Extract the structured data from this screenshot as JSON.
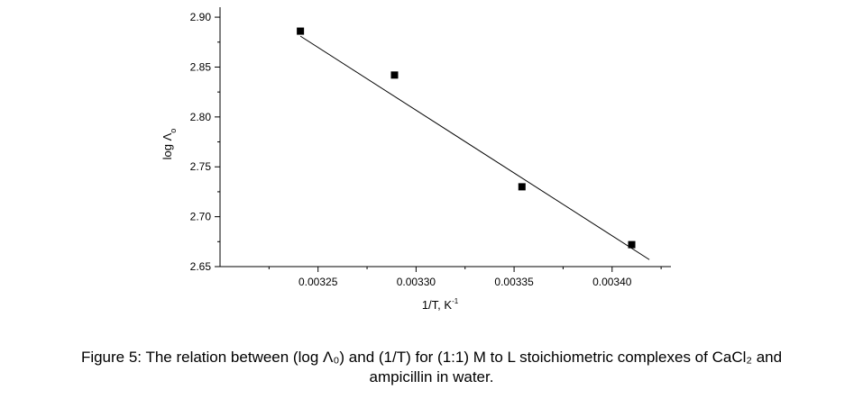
{
  "chart_data": {
    "type": "scatter",
    "xlabel": "1/T, K",
    "xlabel_sup": "-1",
    "ylabel": "log Λ",
    "ylabel_sub": "o",
    "xlim": [
      0.0032,
      0.00343
    ],
    "ylim": [
      2.65,
      2.91
    ],
    "xticks": [
      0.00325,
      0.0033,
      0.00335,
      0.0034
    ],
    "xtick_labels": [
      "0.00325",
      "0.00330",
      "0.00335",
      "0.00340"
    ],
    "yticks": [
      2.65,
      2.7,
      2.75,
      2.8,
      2.85,
      2.9
    ],
    "ytick_labels": [
      "2.65",
      "2.70",
      "2.75",
      "2.80",
      "2.85",
      "2.90"
    ],
    "points": [
      {
        "x": 0.003241,
        "y": 2.886
      },
      {
        "x": 0.003289,
        "y": 2.842
      },
      {
        "x": 0.003354,
        "y": 2.73
      },
      {
        "x": 0.00341,
        "y": 2.672
      }
    ],
    "fit_line": {
      "x": [
        0.003241,
        0.003419
      ],
      "y": [
        2.881,
        2.657
      ]
    }
  },
  "caption": {
    "line1": "Figure 5: The relation between (log Λ₀) and (1/T) for (1:1) M to L stoichiometric complexes of CaCl₂ and",
    "line2": "ampicillin in water."
  }
}
